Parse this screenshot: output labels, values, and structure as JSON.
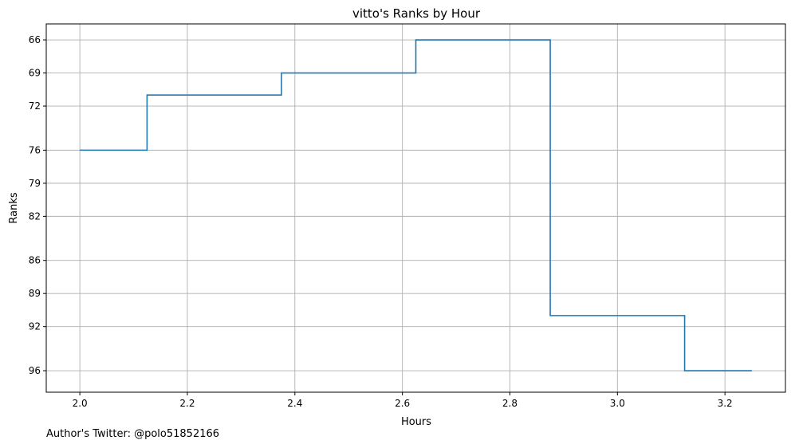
{
  "chart_data": {
    "type": "line",
    "step": "mid",
    "title": "vitto's Ranks by Hour",
    "xlabel": "Hours",
    "ylabel": "Ranks",
    "x": [
      2.0,
      2.25,
      2.5,
      2.75,
      3.0,
      3.25
    ],
    "series": [
      {
        "values": [
          76,
          71,
          69,
          66,
          91,
          96
        ],
        "color": "#1f77b4"
      }
    ],
    "xlim": [
      1.9375,
      3.3125
    ],
    "ylim": [
      97.95,
      64.55
    ],
    "y_inverted": true,
    "xticks": [
      2.0,
      2.2,
      2.4,
      2.6,
      2.8,
      3.0,
      3.2
    ],
    "xtick_labels": [
      "2.0",
      "2.2",
      "2.4",
      "2.6",
      "2.8",
      "3.0",
      "3.2"
    ],
    "yticks": [
      66,
      69,
      72,
      76,
      79,
      82,
      86,
      89,
      92,
      96
    ],
    "ytick_labels": [
      "66",
      "69",
      "72",
      "76",
      "79",
      "82",
      "86",
      "89",
      "92",
      "96"
    ],
    "grid": true,
    "grid_color": "#b0b0b0"
  },
  "footer": {
    "text": "Author's Twitter: @polo51852166"
  }
}
